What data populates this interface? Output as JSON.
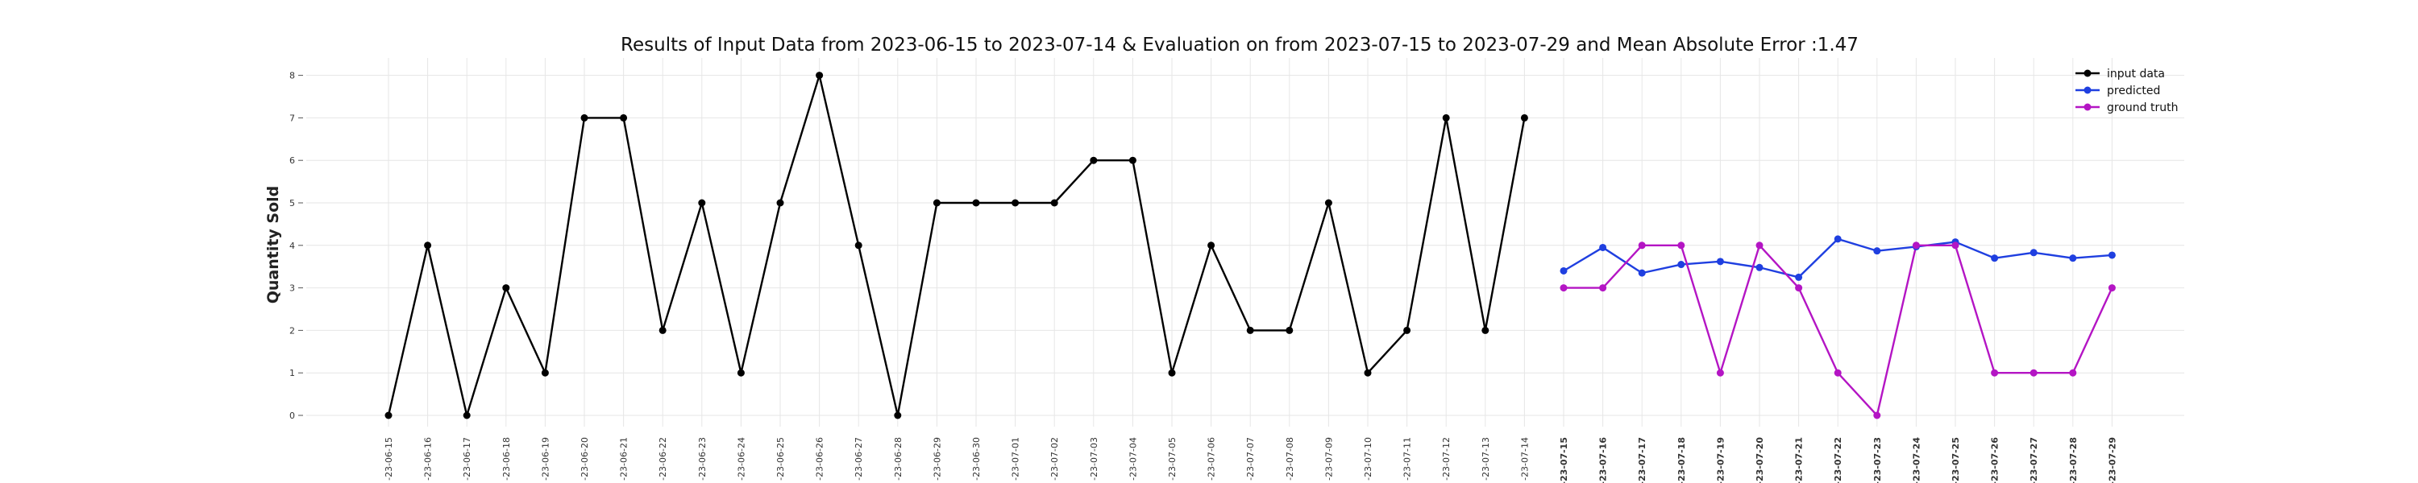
{
  "chart_data": {
    "type": "line",
    "title": "Results of Input Data from 2023-06-15 to 2023-07-14 & Evaluation on from 2023-07-15 to 2023-07-29 and Mean Absolute Error  :1.47",
    "xlabel": "",
    "ylabel": "Quantity Sold",
    "ylim": [
      0,
      8
    ],
    "yticks": [
      0,
      1,
      2,
      3,
      4,
      5,
      6,
      7,
      8
    ],
    "grid": true,
    "legend_position": "top-right",
    "x_tick_labels": [
      "-23-06-15",
      "-23-06-16",
      "-23-06-17",
      "-23-06-18",
      "-23-06-19",
      "-23-06-20",
      "-23-06-21",
      "-23-06-22",
      "-23-06-23",
      "-23-06-24",
      "-23-06-25",
      "-23-06-26",
      "-23-06-27",
      "-23-06-28",
      "-23-06-29",
      "-23-06-30",
      "-23-07-01",
      "-23-07-02",
      "-23-07-03",
      "-23-07-04",
      "-23-07-05",
      "-23-07-06",
      "-23-07-07",
      "-23-07-08",
      "-23-07-09",
      "-23-07-10",
      "-23-07-11",
      "-23-07-12",
      "-23-07-13",
      "-23-07-14",
      "-23-07-15",
      "-23-07-16",
      "-23-07-17",
      "-23-07-18",
      "-23-07-19",
      "-23-07-20",
      "-23-07-21",
      "-23-07-22",
      "-23-07-23",
      "-23-07-24",
      "-23-07-25",
      "-23-07-26",
      "-23-07-27",
      "-23-07-28",
      "-23-07-29"
    ],
    "evaluation_start_index": 30,
    "series": [
      {
        "name": "input data",
        "color": "#000000",
        "x": [
          "2023-06-15",
          "2023-06-16",
          "2023-06-17",
          "2023-06-18",
          "2023-06-19",
          "2023-06-20",
          "2023-06-21",
          "2023-06-22",
          "2023-06-23",
          "2023-06-24",
          "2023-06-25",
          "2023-06-26",
          "2023-06-27",
          "2023-06-28",
          "2023-06-29",
          "2023-06-30",
          "2023-07-01",
          "2023-07-02",
          "2023-07-03",
          "2023-07-04",
          "2023-07-05",
          "2023-07-06",
          "2023-07-07",
          "2023-07-08",
          "2023-07-09",
          "2023-07-10",
          "2023-07-11",
          "2023-07-12",
          "2023-07-13",
          "2023-07-14"
        ],
        "values": [
          0,
          4,
          0,
          3,
          1,
          7,
          7,
          2,
          5,
          1,
          5,
          8,
          4,
          0,
          5,
          5,
          5,
          5,
          6,
          6,
          1,
          4,
          2,
          2,
          5,
          1,
          2,
          7,
          2,
          7
        ]
      },
      {
        "name": "predicted",
        "color": "#1f3fe0",
        "x": [
          "2023-07-15",
          "2023-07-16",
          "2023-07-17",
          "2023-07-18",
          "2023-07-19",
          "2023-07-20",
          "2023-07-21",
          "2023-07-22",
          "2023-07-23",
          "2023-07-24",
          "2023-07-25",
          "2023-07-26",
          "2023-07-27",
          "2023-07-28",
          "2023-07-29"
        ],
        "values": [
          3.4,
          3.95,
          3.35,
          3.55,
          3.62,
          3.48,
          3.25,
          4.15,
          3.87,
          3.97,
          4.08,
          3.7,
          3.83,
          3.7,
          3.77
        ]
      },
      {
        "name": "ground truth",
        "color": "#b415c4",
        "x": [
          "2023-07-15",
          "2023-07-16",
          "2023-07-17",
          "2023-07-18",
          "2023-07-19",
          "2023-07-20",
          "2023-07-21",
          "2023-07-22",
          "2023-07-23",
          "2023-07-24",
          "2023-07-25",
          "2023-07-26",
          "2023-07-27",
          "2023-07-28",
          "2023-07-29"
        ],
        "values": [
          3,
          3,
          4,
          4,
          1,
          4,
          3,
          1,
          0,
          4,
          4,
          1,
          1,
          1,
          3
        ]
      }
    ]
  }
}
